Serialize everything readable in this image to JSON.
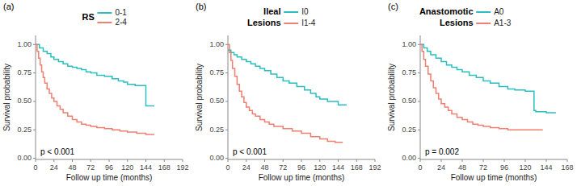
{
  "chart_data": [
    {
      "type": "step",
      "title": "RS",
      "annotations": [
        "(a)",
        "p < 0.001"
      ],
      "x_label": "Follow up time (months)",
      "y_label": "Survival probability",
      "xlim": [
        0,
        192
      ],
      "xticks": [
        0,
        24,
        48,
        72,
        96,
        120,
        144,
        168,
        192
      ],
      "ylim": [
        -0.01,
        1.08
      ],
      "yticks": [
        {
          "value": 0.0,
          "label": "0.00"
        },
        {
          "value": 0.25,
          "label": "0.25"
        },
        {
          "value": 0.5,
          "label": "0.50"
        },
        {
          "value": 0.75,
          "label": "0.75"
        },
        {
          "value": 1.0,
          "label": "1.00"
        }
      ],
      "grid": false,
      "legend": "top",
      "series": [
        {
          "name": "0-1",
          "color": "#2BBEBF",
          "x": [
            0,
            5,
            10,
            15,
            20,
            24,
            30,
            36,
            42,
            48,
            54,
            60,
            66,
            72,
            80,
            90,
            100,
            108,
            115,
            120,
            130,
            144,
            155
          ],
          "values": [
            1.0,
            0.97,
            0.94,
            0.92,
            0.89,
            0.87,
            0.85,
            0.83,
            0.81,
            0.8,
            0.79,
            0.78,
            0.76,
            0.75,
            0.73,
            0.72,
            0.7,
            0.68,
            0.67,
            0.65,
            0.64,
            0.46,
            0.46
          ]
        },
        {
          "name": "2-4",
          "color": "#F07F72",
          "x": [
            0,
            2,
            4,
            6,
            8,
            10,
            12,
            15,
            18,
            21,
            24,
            28,
            32,
            36,
            42,
            48,
            54,
            60,
            66,
            72,
            80,
            90,
            100,
            110,
            120,
            132,
            144,
            155
          ],
          "values": [
            1.0,
            0.94,
            0.88,
            0.82,
            0.76,
            0.71,
            0.66,
            0.61,
            0.57,
            0.53,
            0.5,
            0.46,
            0.43,
            0.4,
            0.37,
            0.34,
            0.32,
            0.3,
            0.29,
            0.28,
            0.27,
            0.26,
            0.25,
            0.24,
            0.23,
            0.22,
            0.21,
            0.21
          ]
        }
      ]
    },
    {
      "type": "step",
      "title": "Ileal",
      "subtitle": "Lesions",
      "annotations": [
        "(b)",
        "p < 0.001"
      ],
      "x_label": "Follow up time (months)",
      "y_label": "Survival probability",
      "xlim": [
        0,
        192
      ],
      "xticks": [
        0,
        24,
        48,
        72,
        96,
        120,
        144,
        168,
        192
      ],
      "ylim": [
        -0.01,
        1.08
      ],
      "yticks": [
        {
          "value": 0.0,
          "label": "0.00"
        },
        {
          "value": 0.25,
          "label": "0.25"
        },
        {
          "value": 0.5,
          "label": "0.50"
        },
        {
          "value": 0.75,
          "label": "0.75"
        },
        {
          "value": 1.0,
          "label": "1.00"
        }
      ],
      "grid": false,
      "legend": "top",
      "series": [
        {
          "name": "I0",
          "color": "#2BBEBF",
          "x": [
            0,
            4,
            8,
            12,
            18,
            24,
            30,
            36,
            42,
            48,
            56,
            64,
            72,
            80,
            90,
            100,
            108,
            115,
            120,
            130,
            144,
            155
          ],
          "values": [
            0.95,
            0.93,
            0.91,
            0.89,
            0.87,
            0.85,
            0.83,
            0.81,
            0.79,
            0.77,
            0.74,
            0.71,
            0.68,
            0.66,
            0.63,
            0.6,
            0.57,
            0.54,
            0.52,
            0.5,
            0.47,
            0.47
          ]
        },
        {
          "name": "I1-4",
          "color": "#F07F72",
          "x": [
            0,
            2,
            4,
            6,
            9,
            12,
            15,
            18,
            21,
            24,
            28,
            32,
            36,
            42,
            48,
            54,
            60,
            72,
            84,
            96,
            108,
            120,
            130,
            140,
            150
          ],
          "values": [
            1.0,
            0.93,
            0.86,
            0.79,
            0.72,
            0.65,
            0.59,
            0.54,
            0.49,
            0.45,
            0.42,
            0.39,
            0.37,
            0.34,
            0.32,
            0.3,
            0.28,
            0.26,
            0.24,
            0.22,
            0.19,
            0.17,
            0.15,
            0.14,
            0.14
          ]
        }
      ]
    },
    {
      "type": "step",
      "title": "Anastomotic",
      "subtitle": "Lesions",
      "annotations": [
        "(c)",
        "p = 0.002"
      ],
      "x_label": "Follow up time (months)",
      "y_label": "Survival probability",
      "xlim": [
        0,
        168
      ],
      "xticks": [
        0,
        24,
        48,
        72,
        96,
        120,
        144,
        168
      ],
      "ylim": [
        -0.01,
        1.08
      ],
      "yticks": [
        {
          "value": 0.0,
          "label": "0.00"
        },
        {
          "value": 0.25,
          "label": "0.25"
        },
        {
          "value": 0.5,
          "label": "0.50"
        },
        {
          "value": 0.75,
          "label": "0.75"
        },
        {
          "value": 1.0,
          "label": "1.00"
        }
      ],
      "grid": false,
      "legend": "top",
      "series": [
        {
          "name": "A0",
          "color": "#2BBEBF",
          "x": [
            0,
            4,
            8,
            12,
            18,
            24,
            30,
            36,
            42,
            48,
            56,
            64,
            72,
            80,
            90,
            100,
            108,
            120,
            130,
            132,
            144,
            155
          ],
          "values": [
            1.0,
            0.97,
            0.94,
            0.91,
            0.88,
            0.85,
            0.82,
            0.8,
            0.78,
            0.76,
            0.73,
            0.71,
            0.68,
            0.66,
            0.63,
            0.61,
            0.6,
            0.59,
            0.42,
            0.41,
            0.4,
            0.4
          ]
        },
        {
          "name": "A1-3",
          "color": "#F07F72",
          "x": [
            0,
            2,
            4,
            6,
            9,
            12,
            15,
            18,
            21,
            24,
            28,
            32,
            36,
            42,
            48,
            54,
            60,
            66,
            72,
            80,
            90,
            100,
            108,
            120,
            132,
            140
          ],
          "values": [
            1.0,
            0.94,
            0.87,
            0.81,
            0.74,
            0.68,
            0.62,
            0.57,
            0.52,
            0.48,
            0.45,
            0.42,
            0.39,
            0.36,
            0.34,
            0.32,
            0.3,
            0.29,
            0.28,
            0.27,
            0.26,
            0.25,
            0.25,
            0.25,
            0.25,
            0.25
          ]
        }
      ]
    }
  ]
}
